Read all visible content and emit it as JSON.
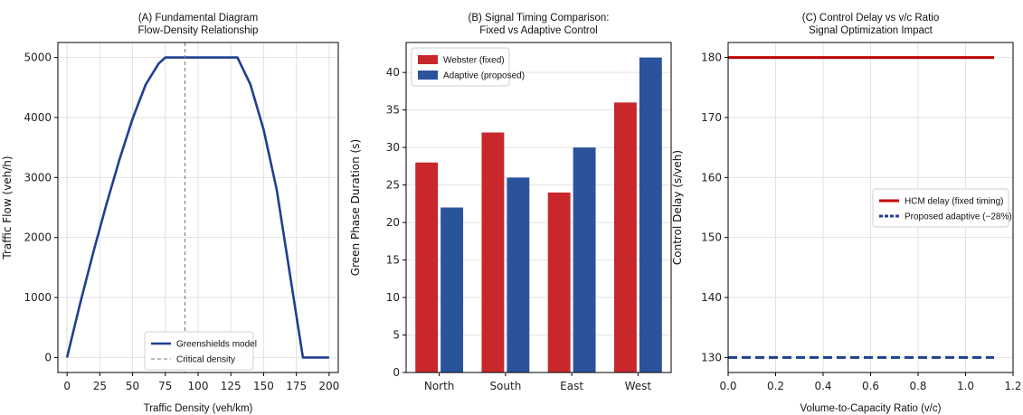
{
  "chart_data": [
    {
      "type": "line",
      "title": "(A) Fundamental Diagram",
      "subtitle": "Flow-Density Relationship",
      "xlabel": "Traffic Density (veh/km)",
      "ylabel": "Traffic Flow (veh/h)",
      "xlim": [
        -7,
        207
      ],
      "ylim": [
        -250,
        5250
      ],
      "xticks": [
        0,
        25,
        50,
        75,
        100,
        125,
        150,
        175,
        200
      ],
      "yticks": [
        0,
        1000,
        2000,
        3000,
        4000,
        5000
      ],
      "grid": true,
      "legend_position": "lower-center",
      "series": [
        {
          "name": "Greenshields model",
          "color": "#1f3f8f",
          "style": "solid",
          "x": [
            0,
            10,
            20,
            30,
            40,
            50,
            60,
            70,
            75,
            80,
            90,
            100,
            110,
            120,
            130,
            140,
            150,
            160,
            170,
            180,
            190,
            200
          ],
          "y": [
            0,
            900,
            1750,
            2550,
            3300,
            3980,
            4550,
            4900,
            5000,
            5000,
            5000,
            5000,
            5000,
            5000,
            5000,
            4550,
            3800,
            2800,
            1400,
            0,
            0,
            0
          ]
        },
        {
          "name": "Critical density",
          "color": "#777777",
          "style": "dashed",
          "vertical_x": 90
        }
      ]
    },
    {
      "type": "bar",
      "title": "(B) Signal Timing Comparison:",
      "subtitle": "Fixed vs Adaptive Control",
      "xlabel": "",
      "ylabel": "Green Phase Duration (s)",
      "ylim": [
        0,
        44
      ],
      "yticks": [
        0,
        5,
        10,
        15,
        20,
        25,
        30,
        35,
        40
      ],
      "grid": true,
      "legend_position": "upper-left",
      "categories": [
        "North",
        "South",
        "East",
        "West"
      ],
      "series": [
        {
          "name": "Webster (fixed)",
          "color": "#c8282b",
          "values": [
            28,
            32,
            24,
            36
          ]
        },
        {
          "name": "Adaptive (proposed)",
          "color": "#2b539c",
          "values": [
            22,
            26,
            30,
            42
          ]
        }
      ]
    },
    {
      "type": "line",
      "title": "(C) Control Delay vs v/c Ratio",
      "subtitle": "Signal Optimization Impact",
      "xlabel": "Volume-to-Capacity Ratio (v/c)",
      "ylabel": "Control Delay (s/veh)",
      "xlim": [
        0,
        1.2
      ],
      "ylim": [
        127.5,
        182.5
      ],
      "xticks": [
        "0.0",
        "0.2",
        "0.4",
        "0.6",
        "0.8",
        "1.0",
        "1.2"
      ],
      "yticks": [
        130,
        140,
        150,
        160,
        170,
        180
      ],
      "grid": true,
      "legend_position": "center-right",
      "series": [
        {
          "name": "HCM delay (fixed timing)",
          "color": "#c00000",
          "style": "solid",
          "x": [
            0,
            1.12
          ],
          "y": [
            180,
            180
          ]
        },
        {
          "name": "Proposed adaptive (−28%)",
          "color": "#1f3f8f",
          "style": "dashed",
          "x": [
            0,
            1.12
          ],
          "y": [
            130,
            130
          ]
        }
      ]
    }
  ]
}
